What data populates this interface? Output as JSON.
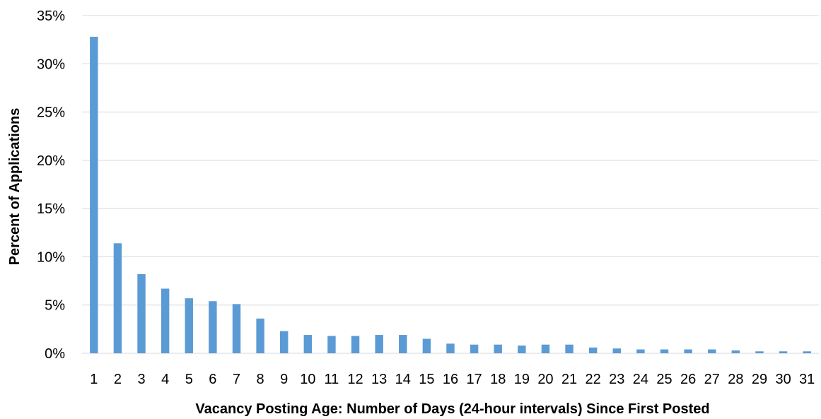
{
  "chart_data": {
    "type": "bar",
    "title": "",
    "xlabel": "Vacancy Posting Age: Number of Days (24-hour intervals) Since First Posted",
    "ylabel": "Percent of Applications",
    "categories": [
      "1",
      "2",
      "3",
      "4",
      "5",
      "6",
      "7",
      "8",
      "9",
      "10",
      "11",
      "12",
      "13",
      "14",
      "15",
      "16",
      "17",
      "18",
      "19",
      "20",
      "21",
      "22",
      "23",
      "24",
      "25",
      "26",
      "27",
      "28",
      "29",
      "30",
      "31"
    ],
    "values": [
      32.8,
      11.4,
      8.2,
      6.7,
      5.7,
      5.4,
      5.1,
      3.6,
      2.3,
      1.9,
      1.8,
      1.8,
      1.9,
      1.9,
      1.5,
      1.0,
      0.9,
      0.9,
      0.8,
      0.9,
      0.9,
      0.6,
      0.5,
      0.4,
      0.4,
      0.4,
      0.4,
      0.3,
      0.2,
      0.2,
      0.2
    ],
    "ylim": [
      0,
      35
    ],
    "yticks": [
      0,
      5,
      10,
      15,
      20,
      25,
      30,
      35
    ],
    "ytick_labels": [
      "0%",
      "5%",
      "10%",
      "15%",
      "20%",
      "25%",
      "30%",
      "35%"
    ],
    "grid": true,
    "legend": "none",
    "bar_color": "#5b9bd5",
    "grid_color": "#d9d9d9"
  }
}
